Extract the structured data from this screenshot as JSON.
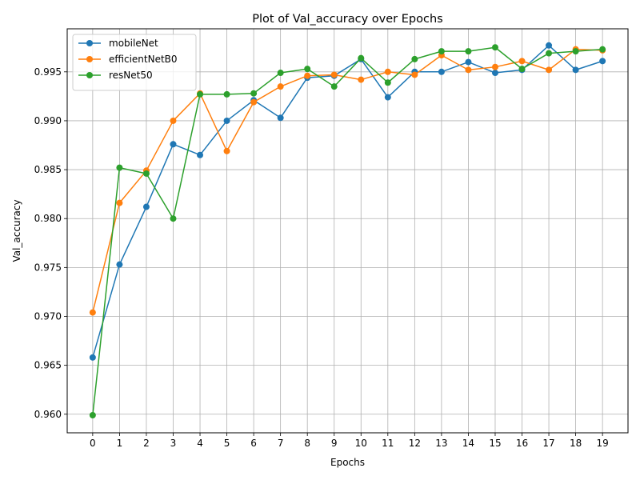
{
  "chart_data": {
    "type": "line",
    "title": "Plot of Val_accuracy over Epochs",
    "xlabel": "Epochs",
    "ylabel": "Val_accuracy",
    "x": [
      0,
      1,
      2,
      3,
      4,
      5,
      6,
      7,
      8,
      9,
      10,
      11,
      12,
      13,
      14,
      15,
      16,
      17,
      18,
      19
    ],
    "xlim": [
      -0.95,
      19.95
    ],
    "ylim": [
      0.9581,
      0.9994
    ],
    "yticks": [
      "0.960",
      "0.965",
      "0.970",
      "0.975",
      "0.980",
      "0.985",
      "0.990",
      "0.995"
    ],
    "ytick_values": [
      0.96,
      0.965,
      0.97,
      0.975,
      0.98,
      0.985,
      0.99,
      0.995
    ],
    "grid": true,
    "legend_position": "top-left",
    "marker": "circle",
    "series": [
      {
        "name": "mobileNet",
        "color": "#1f77b4",
        "values": [
          0.9658,
          0.9753,
          0.9812,
          0.9876,
          0.9865,
          0.99,
          0.9921,
          0.9903,
          0.9944,
          0.9946,
          0.9963,
          0.9924,
          0.995,
          0.995,
          0.996,
          0.9949,
          0.9952,
          0.9977,
          0.9952,
          0.9961
        ]
      },
      {
        "name": "efficientNetB0",
        "color": "#ff7f0e",
        "values": [
          0.9704,
          0.9816,
          0.9849,
          0.99,
          0.9928,
          0.9869,
          0.9919,
          0.9935,
          0.9946,
          0.9947,
          0.9942,
          0.995,
          0.9947,
          0.9967,
          0.9952,
          0.9955,
          0.9961,
          0.9952,
          0.9973,
          0.9972
        ]
      },
      {
        "name": "resNet50",
        "color": "#2ca02c",
        "values": [
          0.9599,
          0.9852,
          0.9846,
          0.98,
          0.9927,
          0.9927,
          0.9928,
          0.9949,
          0.9953,
          0.9935,
          0.9964,
          0.9939,
          0.9963,
          0.9971,
          0.9971,
          0.9975,
          0.9953,
          0.9969,
          0.9971,
          0.9973
        ]
      }
    ]
  }
}
